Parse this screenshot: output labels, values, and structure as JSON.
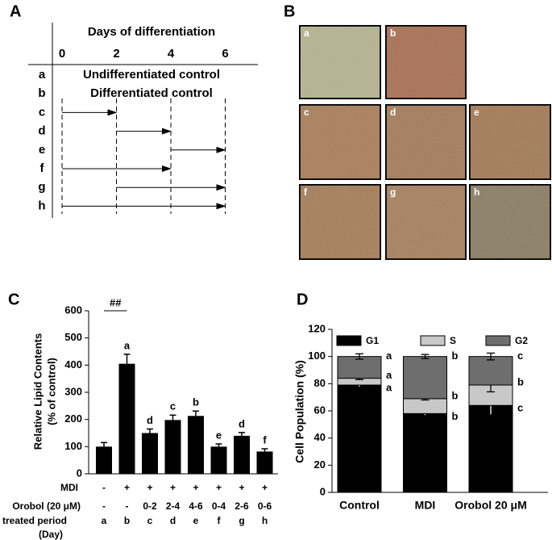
{
  "panel_labels": [
    "A",
    "B",
    "C",
    "D"
  ],
  "diagram": {
    "title": "Days of differentiation",
    "days": [
      0,
      2,
      4,
      6
    ],
    "rows": [
      {
        "label": "a",
        "text": "Undifferentiated control"
      },
      {
        "label": "b",
        "text": "Differentiated control"
      },
      {
        "label": "c",
        "start": 0,
        "end": 2
      },
      {
        "label": "d",
        "start": 2,
        "end": 4
      },
      {
        "label": "e",
        "start": 4,
        "end": 6
      },
      {
        "label": "f",
        "start": 0,
        "end": 4
      },
      {
        "label": "g",
        "start": 2,
        "end": 6
      },
      {
        "label": "h",
        "start": 0,
        "end": 6
      }
    ]
  },
  "micrographs": [
    {
      "label": "a",
      "color": "#b5b38f"
    },
    {
      "label": "b",
      "color": "#a86e52"
    },
    {
      "label": "c",
      "color": "#a87d58"
    },
    {
      "label": "d",
      "color": "#a47a58"
    },
    {
      "label": "e",
      "color": "#a27955"
    },
    {
      "label": "f",
      "color": "#a57c58"
    },
    {
      "label": "g",
      "color": "#a77e5c"
    },
    {
      "label": "h",
      "color": "#8a7c62"
    }
  ],
  "chart_data": [
    {
      "type": "bar",
      "ylabel": [
        "Relative Lipid Contents",
        "(% of control)"
      ],
      "xlabel": [
        "treated period",
        "(Day)"
      ],
      "categories": [
        "a",
        "b",
        "c",
        "d",
        "e",
        "f",
        "g",
        "h"
      ],
      "values": [
        100,
        405,
        150,
        198,
        213,
        100,
        140,
        82
      ],
      "errors": [
        15,
        35,
        15,
        18,
        18,
        10,
        12,
        10
      ],
      "letters": [
        null,
        "a",
        "d",
        "c",
        "b",
        "e",
        "d",
        "f"
      ],
      "color": "#000000",
      "ylim": [
        0,
        600
      ],
      "yticks": [
        0,
        100,
        200,
        300,
        400,
        500,
        600
      ],
      "annotation": "##",
      "treatment_rows": [
        {
          "label": "MDI",
          "cells": [
            "-",
            "+",
            "+",
            "+",
            "+",
            "+",
            "+",
            "+"
          ]
        },
        {
          "label": "Orobol (20 μM)",
          "cells": [
            "-",
            "-",
            "0-2",
            "2-4",
            "4-6",
            "0-4",
            "2-6",
            "0-6"
          ]
        }
      ]
    },
    {
      "type": "stacked_bar",
      "ylabel": "Cell Population (%)",
      "categories": [
        "Control",
        "MDI",
        "Orobol 20 μM"
      ],
      "series": [
        {
          "name": "G1",
          "color": "#000000",
          "values": [
            79,
            58,
            64
          ],
          "errors": [
            1.5,
            1.5,
            7
          ],
          "letters": [
            "a",
            "b",
            "c"
          ]
        },
        {
          "name": "S",
          "color": "#c8c8c8",
          "values": [
            5,
            11,
            15
          ],
          "errors": [
            1,
            1,
            5
          ],
          "letters": [
            "a",
            "b",
            "b"
          ]
        },
        {
          "name": "G2",
          "color": "#6e6e6e",
          "values": [
            16,
            31,
            21
          ],
          "errors": [
            2,
            1.5,
            2.5
          ],
          "letters": [
            "a",
            "b",
            "c"
          ]
        }
      ],
      "ylim": [
        0,
        120
      ],
      "yticks": [
        0,
        20,
        40,
        60,
        80,
        100,
        120
      ]
    }
  ]
}
